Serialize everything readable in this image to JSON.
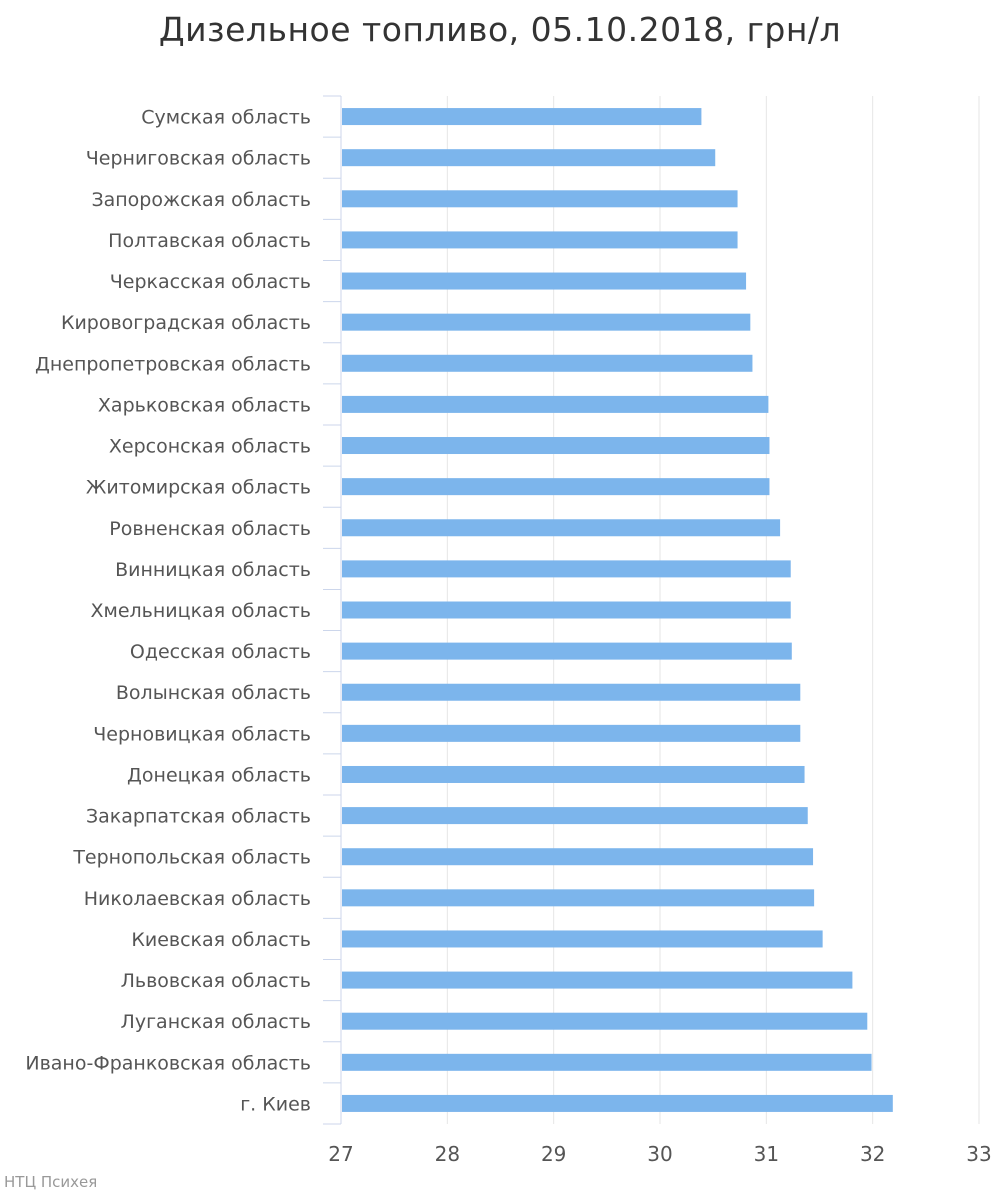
{
  "chart_data": {
    "type": "bar",
    "orientation": "horizontal",
    "title": "Дизельное топливо, 05.10.2018, грн/л",
    "categories": [
      "Сумская область",
      "Черниговская область",
      "Запорожская область",
      "Полтавская область",
      "Черкасская область",
      "Кировоградская область",
      "Днепропетровская область",
      "Харьковская область",
      "Херсонская область",
      "Житомирская область",
      "Ровненская область",
      "Винницкая область",
      "Хмельницкая область",
      "Одесская область",
      "Волынская область",
      "Черновицкая область",
      "Донецкая область",
      "Закарпатская область",
      "Тернопольская область",
      "Николаевская область",
      "Киевская область",
      "Львовская область",
      "Луганская область",
      "Ивано-Франковская область",
      "г. Киев"
    ],
    "values": [
      30.38,
      30.51,
      30.72,
      30.72,
      30.8,
      30.84,
      30.86,
      31.01,
      31.02,
      31.02,
      31.12,
      31.22,
      31.22,
      31.23,
      31.31,
      31.31,
      31.35,
      31.38,
      31.43,
      31.44,
      31.52,
      31.8,
      31.94,
      31.98,
      32.18
    ],
    "xlim": [
      27,
      33
    ],
    "xticks": [
      "27",
      "28",
      "29",
      "30",
      "31",
      "32",
      "33"
    ],
    "grid": true,
    "bar_color": "#7cb5ec",
    "grid_color": "#e6e6e6"
  },
  "credits": "НТЦ Психея"
}
